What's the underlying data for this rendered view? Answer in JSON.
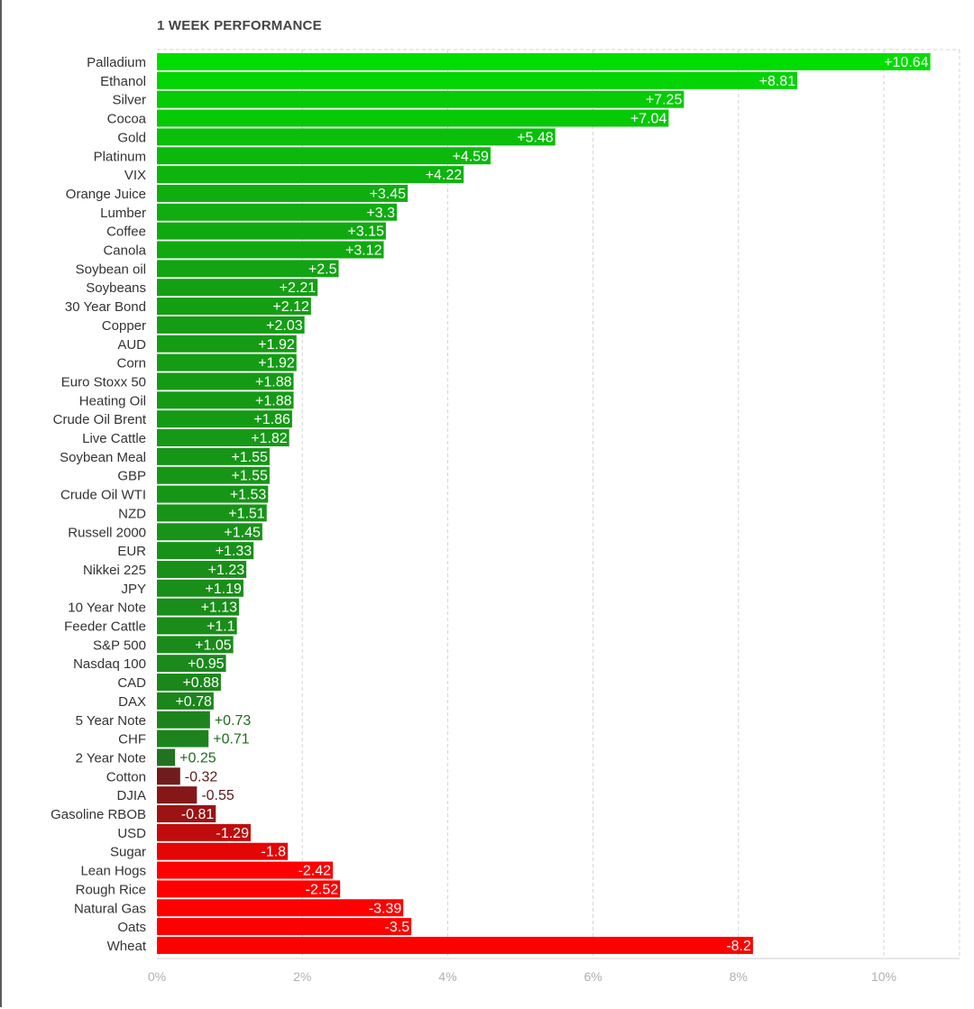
{
  "chart_data": {
    "type": "bar",
    "orientation": "horizontal",
    "title": "1 WEEK PERFORMANCE",
    "xlabel": "",
    "ylabel": "",
    "xlim": [
      0,
      10.64
    ],
    "x_ticks": [
      "0%",
      "2%",
      "4%",
      "6%",
      "8%",
      "10%"
    ],
    "x_tick_values": [
      0,
      2,
      4,
      6,
      8,
      10
    ],
    "grid": true,
    "categories": [
      "Palladium",
      "Ethanol",
      "Silver",
      "Cocoa",
      "Gold",
      "Platinum",
      "VIX",
      "Orange Juice",
      "Lumber",
      "Coffee",
      "Canola",
      "Soybean oil",
      "Soybeans",
      "30 Year Bond",
      "Copper",
      "AUD",
      "Corn",
      "Euro Stoxx 50",
      "Heating Oil",
      "Crude Oil Brent",
      "Live Cattle",
      "Soybean Meal",
      "GBP",
      "Crude Oil WTI",
      "NZD",
      "Russell 2000",
      "EUR",
      "Nikkei 225",
      "JPY",
      "10 Year Note",
      "Feeder Cattle",
      "S&P 500",
      "Nasdaq 100",
      "CAD",
      "DAX",
      "5 Year Note",
      "CHF",
      "2 Year Note",
      "Cotton",
      "DJIA",
      "Gasoline RBOB",
      "USD",
      "Sugar",
      "Lean Hogs",
      "Rough Rice",
      "Natural Gas",
      "Oats",
      "Wheat"
    ],
    "values": [
      10.64,
      8.81,
      7.25,
      7.04,
      5.48,
      4.59,
      4.22,
      3.45,
      3.3,
      3.15,
      3.12,
      2.5,
      2.21,
      2.12,
      2.03,
      1.92,
      1.92,
      1.88,
      1.88,
      1.86,
      1.82,
      1.55,
      1.55,
      1.53,
      1.51,
      1.45,
      1.33,
      1.23,
      1.19,
      1.13,
      1.1,
      1.05,
      0.95,
      0.88,
      0.78,
      0.73,
      0.71,
      0.25,
      -0.32,
      -0.55,
      -0.81,
      -1.29,
      -1.8,
      -2.42,
      -2.52,
      -3.39,
      -3.5,
      -8.2
    ],
    "value_labels": [
      "+10.64",
      "+8.81",
      "+7.25",
      "+7.04",
      "+5.48",
      "+4.59",
      "+4.22",
      "+3.45",
      "+3.3",
      "+3.15",
      "+3.12",
      "+2.5",
      "+2.21",
      "+2.12",
      "+2.03",
      "+1.92",
      "+1.92",
      "+1.88",
      "+1.88",
      "+1.86",
      "+1.82",
      "+1.55",
      "+1.55",
      "+1.53",
      "+1.51",
      "+1.45",
      "+1.33",
      "+1.23",
      "+1.19",
      "+1.13",
      "+1.1",
      "+1.05",
      "+0.95",
      "+0.88",
      "+0.78",
      "+0.73",
      "+0.71",
      "+0.25",
      "-0.32",
      "-0.55",
      "-0.81",
      "-1.29",
      "-1.8",
      "-2.42",
      "-2.52",
      "-3.39",
      "-3.5",
      "-8.2"
    ],
    "colors": {
      "positive_max": "#00dd00",
      "positive_min": "#2f4a2f",
      "negative_min": "#4a2323",
      "negative_max": "#ff0000",
      "inside_label": "#ffffff",
      "outside_positive_label": "#1e6a1e",
      "outside_negative_label": "#5a1a1a",
      "category_label": "#333333",
      "grid": "#d3d3d3",
      "axis_tick": "#b0b0b0"
    }
  }
}
